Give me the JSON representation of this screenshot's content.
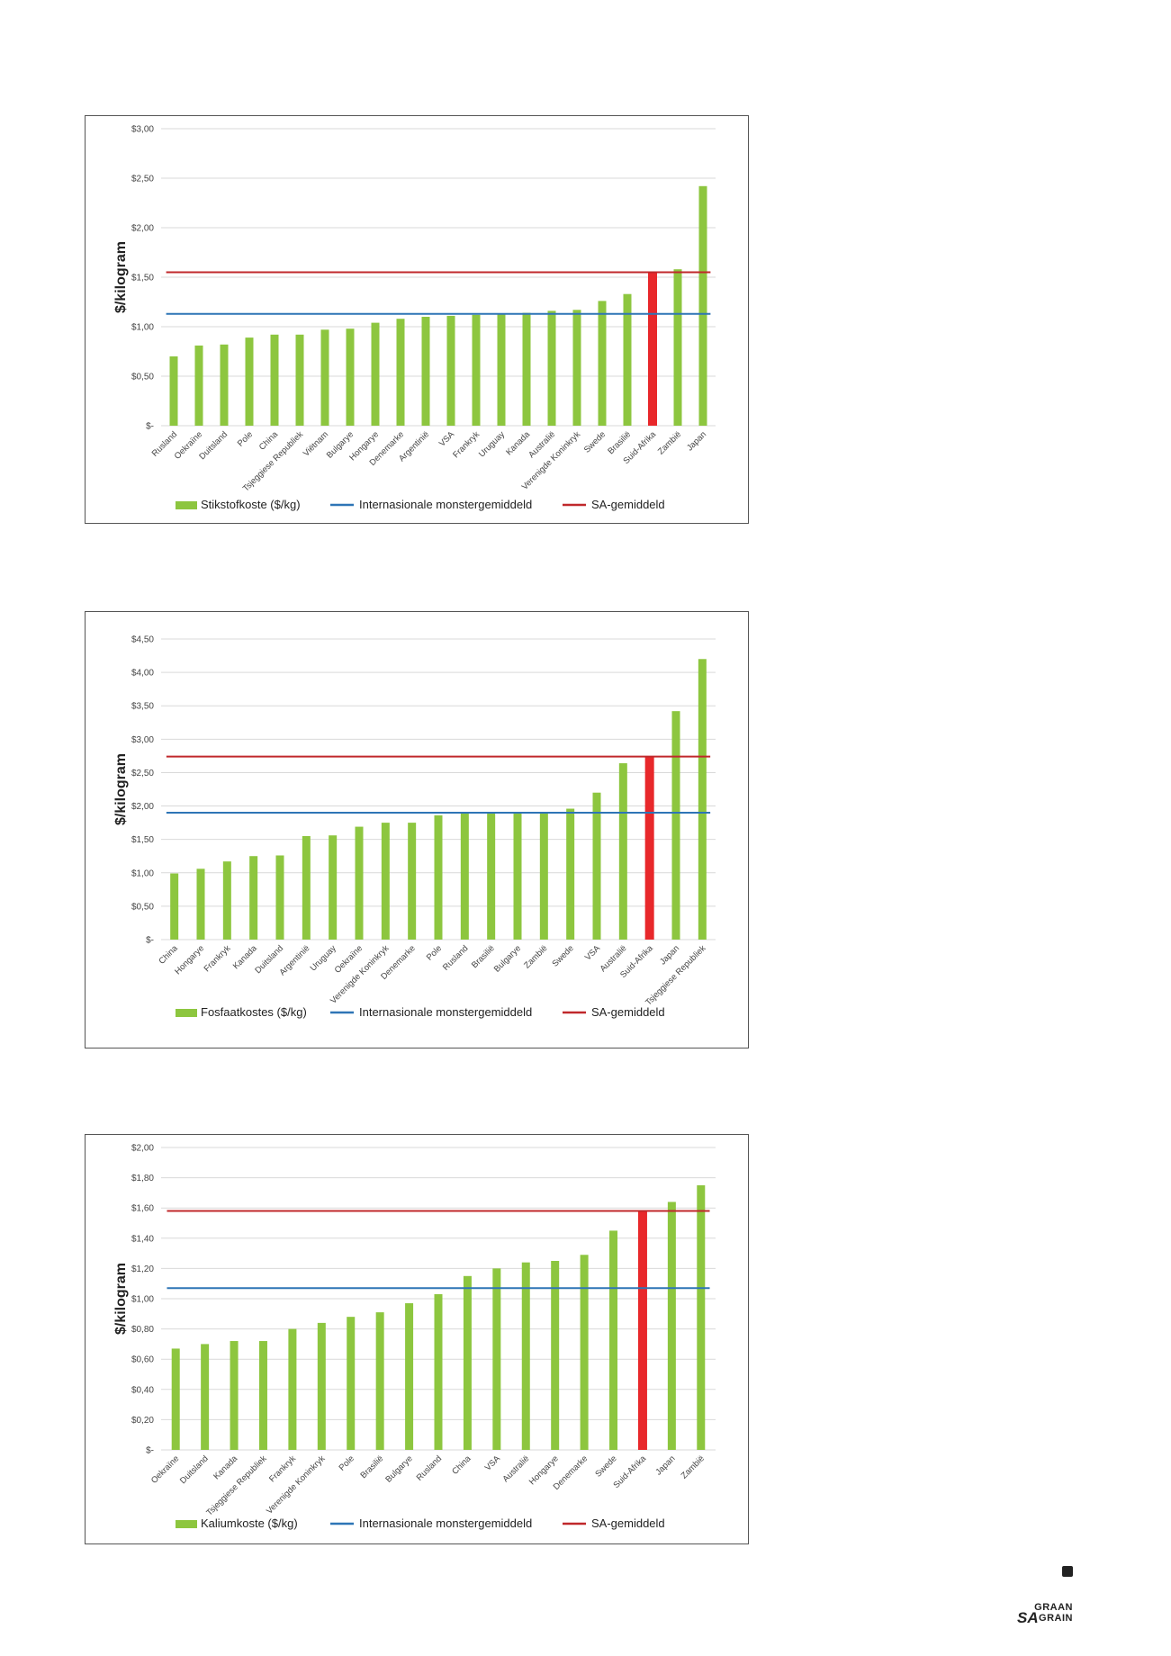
{
  "chart_data": [
    {
      "type": "bar",
      "ylabel": "$/kilogram",
      "ylim": [
        0,
        3.0
      ],
      "yticks": [
        "$-",
        "$0,50",
        "$1,00",
        "$1,50",
        "$2,00",
        "$2,50",
        "$3,00"
      ],
      "ytick_values": [
        0,
        0.5,
        1.0,
        1.5,
        2.0,
        2.5,
        3.0
      ],
      "categories": [
        "Rusland",
        "Oekraïne",
        "Duitsland",
        "Pole",
        "China",
        "Tsjeggiese Republiek",
        "Viëtnam",
        "Bulgarye",
        "Hongarye",
        "Denemarke",
        "Argentinië",
        "VSA",
        "Frankryk",
        "Uruguay",
        "Kanada",
        "Australië",
        "Verenigde Koninkryk",
        "Swede",
        "Brasilië",
        "Suid-Afrika",
        "Zambië",
        "Japan"
      ],
      "values": [
        0.7,
        0.81,
        0.82,
        0.89,
        0.92,
        0.92,
        0.97,
        0.98,
        1.04,
        1.08,
        1.1,
        1.11,
        1.12,
        1.13,
        1.14,
        1.16,
        1.17,
        1.26,
        1.33,
        1.55,
        1.58,
        2.42
      ],
      "highlight_category": "Suid-Afrika",
      "lines": [
        {
          "name": "Internasionale monstergemiddeld",
          "value": 1.13,
          "color": "#2e75b6"
        },
        {
          "name": "SA-gemiddeld",
          "value": 1.55,
          "color": "#c0282b"
        }
      ],
      "legend": {
        "bar_label": "Stikstofkoste ($/kg)",
        "placement": "bottom"
      },
      "colors": {
        "bar": "#8dc63f",
        "highlight": "#e8282b"
      },
      "grid": true
    },
    {
      "type": "bar",
      "ylabel": "$/kilogram",
      "ylim": [
        0,
        4.5
      ],
      "yticks": [
        "$-",
        "$0,50",
        "$1,00",
        "$1,50",
        "$2,00",
        "$2,50",
        "$3,00",
        "$3,50",
        "$4,00",
        "$4,50"
      ],
      "ytick_values": [
        0,
        0.5,
        1.0,
        1.5,
        2.0,
        2.5,
        3.0,
        3.5,
        4.0,
        4.5
      ],
      "categories": [
        "China",
        "Hongarye",
        "Frankryk",
        "Kanada",
        "Duitsland",
        "Argentinië",
        "Uruguay",
        "Oekraïne",
        "Verenigde Koninkryk",
        "Denemarke",
        "Pole",
        "Rusland",
        "Brasilië",
        "Bulgarye",
        "Zambië",
        "Swede",
        "VSA",
        "Australië",
        "Suid-Afrika",
        "Japan",
        "Tsjeggiese Republiek"
      ],
      "values": [
        0.99,
        1.06,
        1.17,
        1.25,
        1.26,
        1.55,
        1.56,
        1.69,
        1.75,
        1.75,
        1.86,
        1.89,
        1.9,
        1.9,
        1.91,
        1.96,
        2.2,
        2.64,
        2.74,
        3.42,
        4.2
      ],
      "highlight_category": "Suid-Afrika",
      "lines": [
        {
          "name": "Internasionale monstergemiddeld",
          "value": 1.9,
          "color": "#2e75b6"
        },
        {
          "name": "SA-gemiddeld",
          "value": 2.74,
          "color": "#c0282b"
        }
      ],
      "legend": {
        "bar_label": "Fosfaatkostes ($/kg)",
        "placement": "bottom"
      },
      "colors": {
        "bar": "#8dc63f",
        "highlight": "#e8282b"
      },
      "grid": true
    },
    {
      "type": "bar",
      "ylabel": "$/kilogram",
      "ylim": [
        0,
        2.0
      ],
      "yticks": [
        "$-",
        "$0,20",
        "$0,40",
        "$0,60",
        "$0,80",
        "$1,00",
        "$1,20",
        "$1,40",
        "$1,60",
        "$1,80",
        "$2,00"
      ],
      "ytick_values": [
        0,
        0.2,
        0.4,
        0.6,
        0.8,
        1.0,
        1.2,
        1.4,
        1.6,
        1.8,
        2.0
      ],
      "categories": [
        "Oekraïne",
        "Duitsland",
        "Kanada",
        "Tsjeggiese Republiek",
        "Frankryk",
        "Verenigde Koninkryk",
        "Pole",
        "Brasilië",
        "Bulgarye",
        "Rusland",
        "China",
        "VSA",
        "Australië",
        "Hongarye",
        "Denemarke",
        "Swede",
        "Suid-Afrika",
        "Japan",
        "Zambië"
      ],
      "values": [
        0.67,
        0.7,
        0.72,
        0.72,
        0.8,
        0.84,
        0.88,
        0.91,
        0.97,
        1.03,
        1.15,
        1.2,
        1.24,
        1.25,
        1.29,
        1.45,
        1.58,
        1.64,
        1.75
      ],
      "highlight_category": "Suid-Afrika",
      "lines": [
        {
          "name": "Internasionale monstergemiddeld",
          "value": 1.07,
          "color": "#2e75b6"
        },
        {
          "name": "SA-gemiddeld",
          "value": 1.58,
          "color": "#c0282b"
        }
      ],
      "legend": {
        "bar_label": "Kaliumkoste ($/kg)",
        "placement": "bottom"
      },
      "colors": {
        "bar": "#8dc63f",
        "highlight": "#e8282b"
      },
      "grid": true
    }
  ],
  "footer": {
    "logo_top": "GRAAN",
    "logo_bottom": "GRAIN",
    "logo_prefix": "SA"
  }
}
